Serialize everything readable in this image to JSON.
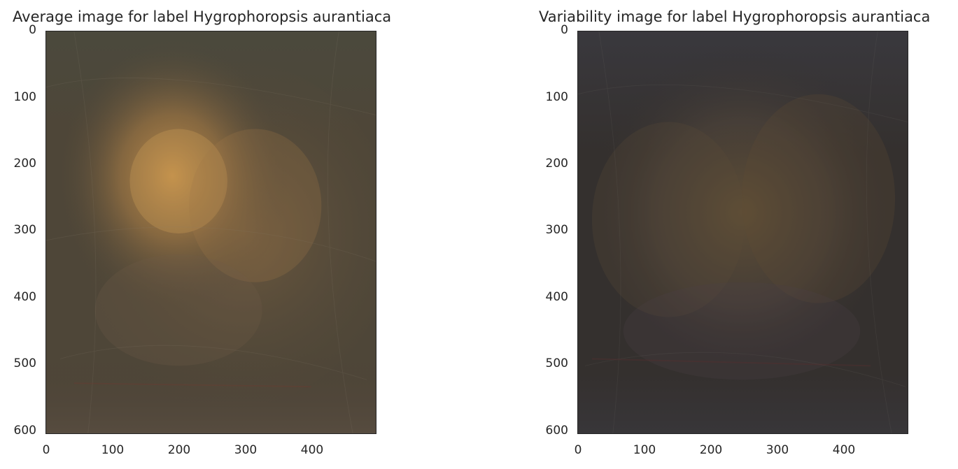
{
  "panels": [
    {
      "title": "Average image for label Hygrophoropsis aurantiaca",
      "y_ticks": [
        "0",
        "100",
        "200",
        "300",
        "400",
        "500",
        "600"
      ],
      "x_ticks": [
        "0",
        "100",
        "200",
        "300",
        "400"
      ],
      "palette": {
        "background": "#4e4638",
        "center_glow": "#c8924a",
        "mid_glow": "#8a6a44",
        "edge_tint": "#5a5a4a"
      }
    },
    {
      "title": "Variability image for label Hygrophoropsis aurantiaca",
      "y_ticks": [
        "0",
        "100",
        "200",
        "300",
        "400",
        "500",
        "600"
      ],
      "x_ticks": [
        "0",
        "100",
        "200",
        "300",
        "400"
      ],
      "palette": {
        "background": "#34302e",
        "center_glow": "#6a5638",
        "mid_glow": "#4e4640",
        "edge_tint": "#3c3c44"
      }
    }
  ]
}
